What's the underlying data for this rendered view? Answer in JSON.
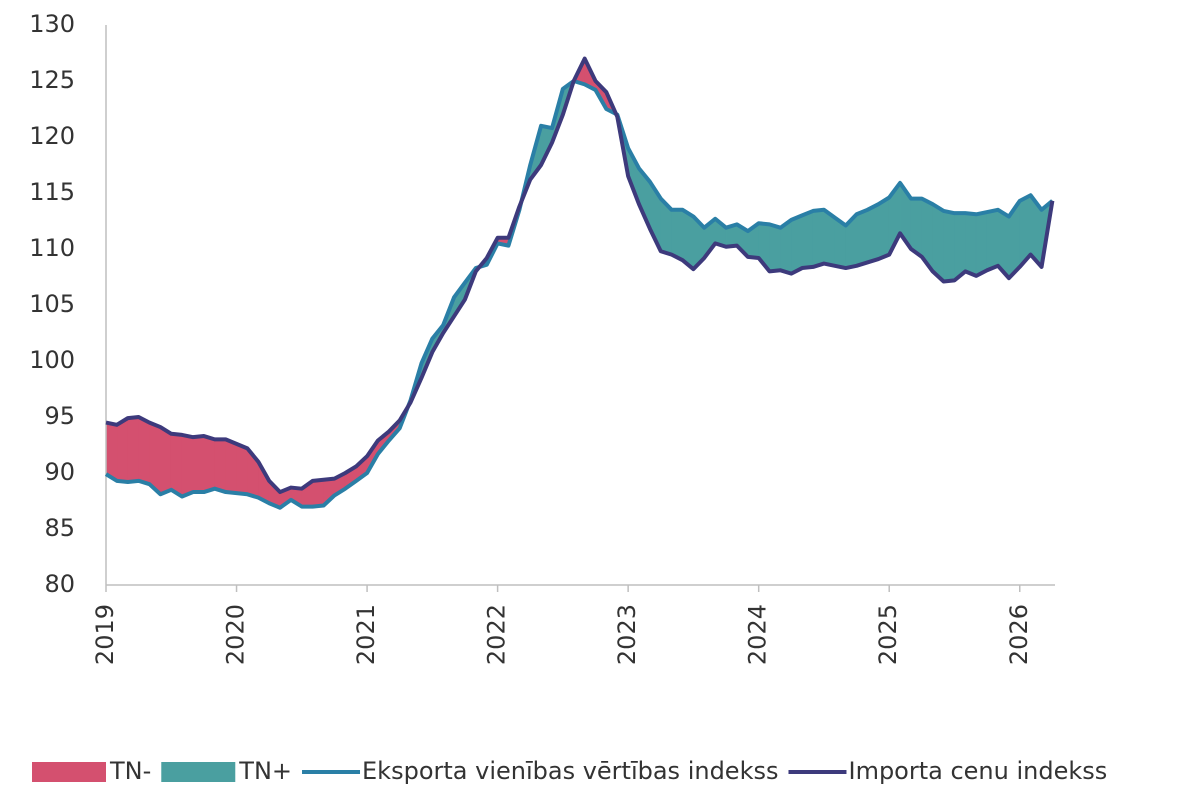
{
  "chart_data": {
    "type": "line",
    "x": [
      2019,
      2019.083,
      2019.167,
      2019.25,
      2019.333,
      2019.417,
      2019.5,
      2019.583,
      2019.667,
      2019.75,
      2019.833,
      2019.917,
      2020,
      2020.083,
      2020.167,
      2020.25,
      2020.333,
      2020.417,
      2020.5,
      2020.583,
      2020.667,
      2020.75,
      2020.833,
      2020.917,
      2021,
      2021.083,
      2021.167,
      2021.25,
      2021.333,
      2021.417,
      2021.5,
      2021.583,
      2021.667,
      2021.75,
      2021.833,
      2021.917,
      2022,
      2022.083,
      2022.167,
      2022.25,
      2022.333,
      2022.417,
      2022.5,
      2022.583,
      2022.667,
      2022.75,
      2022.833,
      2022.917,
      2023,
      2023.083,
      2023.167,
      2023.25,
      2023.333,
      2023.417,
      2023.5,
      2023.583,
      2023.667,
      2023.75,
      2023.833,
      2023.917,
      2024,
      2024.083,
      2024.167,
      2024.25,
      2024.333,
      2024.417,
      2024.5,
      2024.583,
      2024.667,
      2024.75,
      2024.833,
      2024.917,
      2025,
      2025.083,
      2025.167,
      2025.25,
      2025.333,
      2025.417,
      2025.5,
      2025.583,
      2025.667,
      2025.75,
      2025.833,
      2025.917,
      2026,
      2026.083,
      2026.167,
      2026.25
    ],
    "series": [
      {
        "name": "Eksporta vienības vērtības indekss",
        "color": "#2a7fa6",
        "values": [
          89.9,
          89.3,
          89.2,
          89.3,
          89.0,
          88.1,
          88.5,
          87.9,
          88.3,
          88.3,
          88.6,
          88.3,
          88.2,
          88.1,
          87.8,
          87.3,
          86.9,
          87.6,
          87.0,
          87.0,
          87.1,
          88.0,
          88.6,
          89.3,
          90.0,
          91.7,
          92.9,
          94.0,
          96.5,
          99.8,
          102.0,
          103.2,
          105.7,
          107.0,
          108.3,
          108.6,
          110.5,
          110.3,
          113.5,
          117.5,
          121.0,
          120.8,
          124.3,
          125.0,
          124.7,
          124.2,
          122.5,
          122.0,
          119.0,
          117.2,
          116.0,
          114.5,
          113.5,
          113.5,
          112.9,
          111.9,
          112.7,
          111.9,
          112.2,
          111.6,
          112.3,
          112.2,
          111.9,
          112.6,
          113.0,
          113.4,
          113.5,
          112.8,
          112.1,
          113.1,
          113.5,
          114.0,
          114.6,
          115.9,
          114.5,
          114.5,
          114.0,
          113.4,
          113.2,
          113.2,
          113.1,
          113.3,
          113.5,
          112.9,
          114.3,
          114.8,
          113.5,
          114.3
        ]
      },
      {
        "name": "Importa cenu indekss",
        "color": "#3d3a7c",
        "values": [
          94.5,
          94.3,
          94.9,
          95.0,
          94.5,
          94.1,
          93.5,
          93.4,
          93.2,
          93.3,
          93.0,
          93.0,
          92.6,
          92.2,
          91.0,
          89.3,
          88.3,
          88.7,
          88.6,
          89.3,
          89.4,
          89.5,
          90.0,
          90.6,
          91.5,
          92.9,
          93.7,
          94.7,
          96.3,
          98.5,
          100.8,
          102.5,
          104.0,
          105.5,
          108.0,
          109.2,
          111.0,
          111.0,
          113.8,
          116.2,
          117.5,
          119.5,
          122.0,
          125.0,
          127.0,
          125.0,
          124.0,
          121.8,
          116.5,
          114.0,
          111.8,
          109.8,
          109.5,
          109.0,
          108.2,
          109.2,
          110.5,
          110.2,
          110.3,
          109.3,
          109.2,
          108.0,
          108.1,
          107.8,
          108.3,
          108.4,
          108.7,
          108.5,
          108.3,
          108.5,
          108.8,
          109.1,
          109.5,
          111.4,
          110.0,
          109.3,
          108.0,
          107.1,
          107.2,
          108.0,
          107.6,
          108.1,
          108.5,
          107.4,
          108.4,
          109.5,
          108.4,
          114.3
        ]
      }
    ],
    "fills": [
      {
        "name": "TN-",
        "color": "#d4506f"
      },
      {
        "name": "TN+",
        "color": "#4a9fa0"
      }
    ],
    "xlim": [
      2019,
      2026.27
    ],
    "xticks": [
      2019,
      2020,
      2021,
      2022,
      2023,
      2024,
      2025,
      2026
    ],
    "ylim": [
      80,
      130
    ],
    "yticks": [
      80,
      85,
      90,
      95,
      100,
      105,
      110,
      115,
      120,
      125,
      130
    ]
  }
}
